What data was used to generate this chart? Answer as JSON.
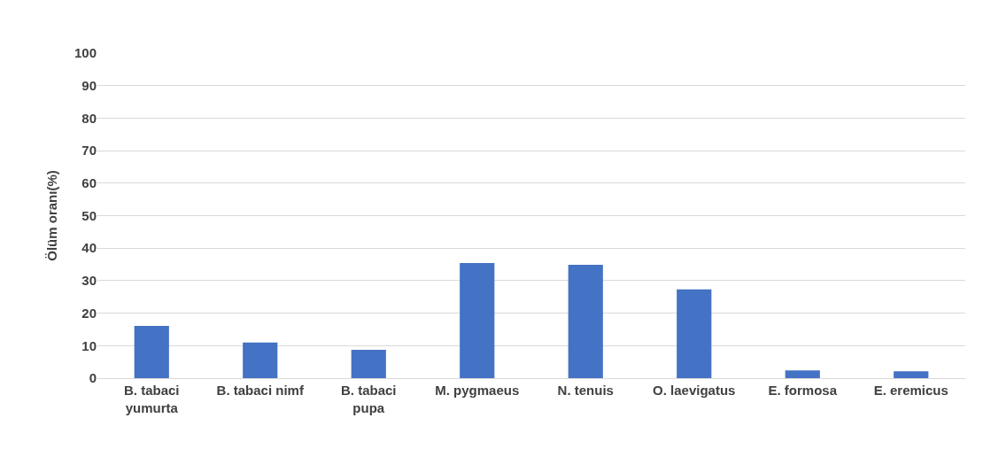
{
  "chart_data": {
    "type": "bar",
    "ylabel": "Ölüm oranı(%)",
    "categories": [
      "B. tabaci\nyumurta",
      "B. tabaci nimf",
      "B. tabaci\npupa",
      "M. pygmaeus",
      "N. tenuis",
      "O. laevigatus",
      "E. formosa",
      "E. eremicus"
    ],
    "values": [
      16.1,
      11.0,
      8.7,
      35.4,
      34.9,
      27.3,
      2.4,
      2.1
    ],
    "color": "#4472c4",
    "ylim": [
      0,
      100
    ],
    "yticks": [
      0,
      10,
      20,
      30,
      40,
      50,
      60,
      70,
      80,
      90,
      100
    ],
    "grid": "y"
  }
}
